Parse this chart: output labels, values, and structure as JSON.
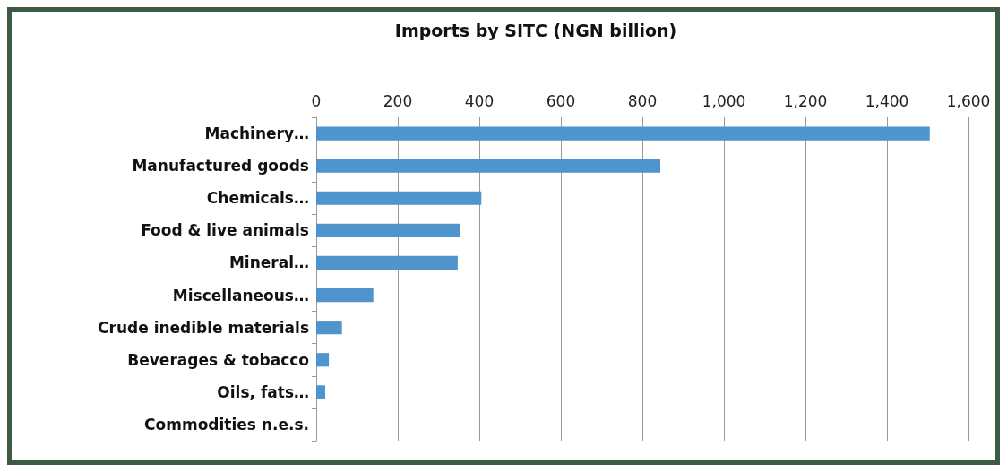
{
  "chart_data": {
    "type": "bar",
    "orientation": "horizontal",
    "title": "Imports by SITC (NGN billion)",
    "categories": [
      "Machinery…",
      "Manufactured goods",
      "Chemicals…",
      "Food & live animals",
      "Mineral…",
      "Miscellaneous…",
      "Crude inedible materials",
      "Beverages & tobacco",
      "Oils, fats…",
      "Commodities n.e.s."
    ],
    "values": [
      1505,
      844,
      405,
      352,
      347,
      140,
      63,
      31,
      22,
      0
    ],
    "color": "#4f94cd",
    "xlim": [
      0,
      1600
    ],
    "xticks": [
      0,
      200,
      400,
      600,
      800,
      {
        "value": 1000,
        "label": "1,000"
      },
      {
        "value": 1200,
        "label": "1,200"
      },
      {
        "value": 1400,
        "label": "1,400"
      },
      {
        "value": 1600,
        "label": "1,600"
      }
    ],
    "grid": "x"
  }
}
